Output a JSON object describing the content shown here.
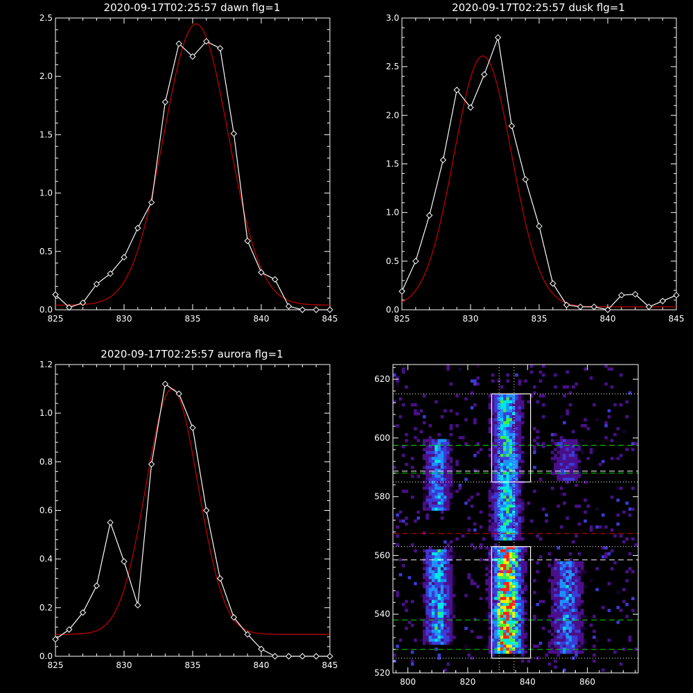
{
  "chart_data": [
    {
      "type": "line",
      "title": "2020-09-17T02:25:57 dawn flg=1",
      "xlim": [
        825,
        845
      ],
      "ylim": [
        0,
        2.5
      ],
      "xticks": [
        "825",
        "830",
        "835",
        "840",
        "845"
      ],
      "yticks": [
        "0.0",
        "0.5",
        "1.0",
        "1.5",
        "2.0",
        "2.5"
      ],
      "series": [
        {
          "color": "#ffffff",
          "marker": "diamond",
          "x": [
            825,
            826,
            827,
            828,
            829,
            830,
            831,
            832,
            833,
            834,
            835,
            836,
            837,
            838,
            839,
            840,
            841,
            842,
            843,
            844,
            845
          ],
          "y": [
            0.13,
            0.02,
            0.06,
            0.22,
            0.31,
            0.45,
            0.7,
            0.92,
            1.78,
            2.28,
            2.17,
            2.3,
            2.24,
            1.51,
            0.59,
            0.32,
            0.26,
            0.03,
            0.0,
            0.0,
            0.0
          ]
        },
        {
          "color": "#cc0000",
          "marker": "none",
          "fit": {
            "baseline": 0.04,
            "amplitude": 2.41,
            "center": 835.25,
            "sigma": 2.35
          }
        }
      ]
    },
    {
      "type": "line",
      "title": "2020-09-17T02:25:57 dusk flg=1",
      "xlim": [
        825,
        845
      ],
      "ylim": [
        0,
        3.0
      ],
      "xticks": [
        "825",
        "830",
        "835",
        "840",
        "845"
      ],
      "yticks": [
        "0.0",
        "0.5",
        "1.0",
        "1.5",
        "2.0",
        "2.5",
        "3.0"
      ],
      "series": [
        {
          "color": "#ffffff",
          "marker": "diamond",
          "x": [
            825,
            826,
            827,
            828,
            829,
            830,
            831,
            832,
            833,
            834,
            835,
            836,
            837,
            838,
            839,
            840,
            841,
            842,
            843,
            844,
            845
          ],
          "y": [
            0.19,
            0.5,
            0.97,
            1.54,
            2.26,
            2.08,
            2.42,
            2.8,
            1.89,
            1.34,
            0.86,
            0.27,
            0.05,
            0.03,
            0.03,
            0.0,
            0.15,
            0.16,
            0.03,
            0.09,
            0.15
          ]
        },
        {
          "color": "#cc0000",
          "marker": "none",
          "fit": {
            "baseline": 0.03,
            "amplitude": 2.58,
            "center": 830.9,
            "sigma": 2.1
          }
        }
      ]
    },
    {
      "type": "line",
      "title": "2020-09-17T02:25:57 aurora flg=1",
      "xlim": [
        825,
        845
      ],
      "ylim": [
        0,
        1.2
      ],
      "xticks": [
        "825",
        "830",
        "835",
        "840",
        "845"
      ],
      "yticks": [
        "0.0",
        "0.2",
        "0.4",
        "0.6",
        "0.8",
        "1.0",
        "1.2"
      ],
      "series": [
        {
          "color": "#ffffff",
          "marker": "diamond",
          "x": [
            825,
            826,
            827,
            828,
            829,
            830,
            831,
            832,
            833,
            834,
            835,
            836,
            837,
            838,
            839,
            840,
            841,
            842,
            843,
            844,
            845
          ],
          "y": [
            0.07,
            0.11,
            0.18,
            0.29,
            0.55,
            0.39,
            0.21,
            0.79,
            1.12,
            1.08,
            0.94,
            0.6,
            0.32,
            0.16,
            0.09,
            0.03,
            0.0,
            0.0,
            0.0,
            0.0,
            0.0
          ]
        },
        {
          "color": "#cc0000",
          "marker": "none",
          "fit": {
            "baseline": 0.09,
            "amplitude": 1.01,
            "center": 833.5,
            "sigma": 1.9
          }
        }
      ]
    },
    {
      "type": "heatmap",
      "title": "",
      "xlim": [
        795,
        877
      ],
      "ylim": [
        520,
        625
      ],
      "xticks": [
        "800",
        "820",
        "840",
        "860"
      ],
      "yticks": [
        "520",
        "540",
        "560",
        "580",
        "600",
        "620"
      ],
      "colormap": [
        "#1a0033",
        "#4a0f8a",
        "#3b3bd6",
        "#1e90ff",
        "#00e5e5",
        "#40f040",
        "#f0f000",
        "#ff2020"
      ],
      "emission_columns": [
        {
          "x_center": 810,
          "x_sigma": 3.0,
          "rows": [
            [
              530,
              562,
              0.55
            ],
            [
              575,
              600,
              0.45
            ]
          ]
        },
        {
          "x_center": 833,
          "x_sigma": 3.2,
          "rows": [
            [
              527,
              563,
              1.0
            ],
            [
              565,
              615,
              0.6
            ]
          ]
        },
        {
          "x_center": 853,
          "x_sigma": 3.5,
          "rows": [
            [
              527,
              558,
              0.45
            ],
            [
              585,
              600,
              0.3
            ]
          ]
        }
      ],
      "boxes": [
        {
          "x": [
            828,
            841
          ],
          "y": [
            585,
            615
          ]
        },
        {
          "x": [
            828,
            841
          ],
          "y": [
            525,
            563
          ]
        }
      ],
      "vertical_dotted_lines": [
        830.5,
        835.5
      ],
      "horizontal_dotted_lines": [
        525,
        563,
        585,
        615
      ],
      "horizontal_dashed_lines": [
        {
          "y": 528,
          "color": "#00dd00"
        },
        {
          "y": 538,
          "color": "#00dd00"
        },
        {
          "y": 558.5,
          "color": "#ffffff"
        },
        {
          "y": 567.5,
          "color": "#dd0000"
        },
        {
          "y": 588,
          "color": "#00dd00"
        },
        {
          "y": 588.7,
          "color": "#ffffff"
        },
        {
          "y": 597.5,
          "color": "#00dd00"
        }
      ]
    }
  ]
}
